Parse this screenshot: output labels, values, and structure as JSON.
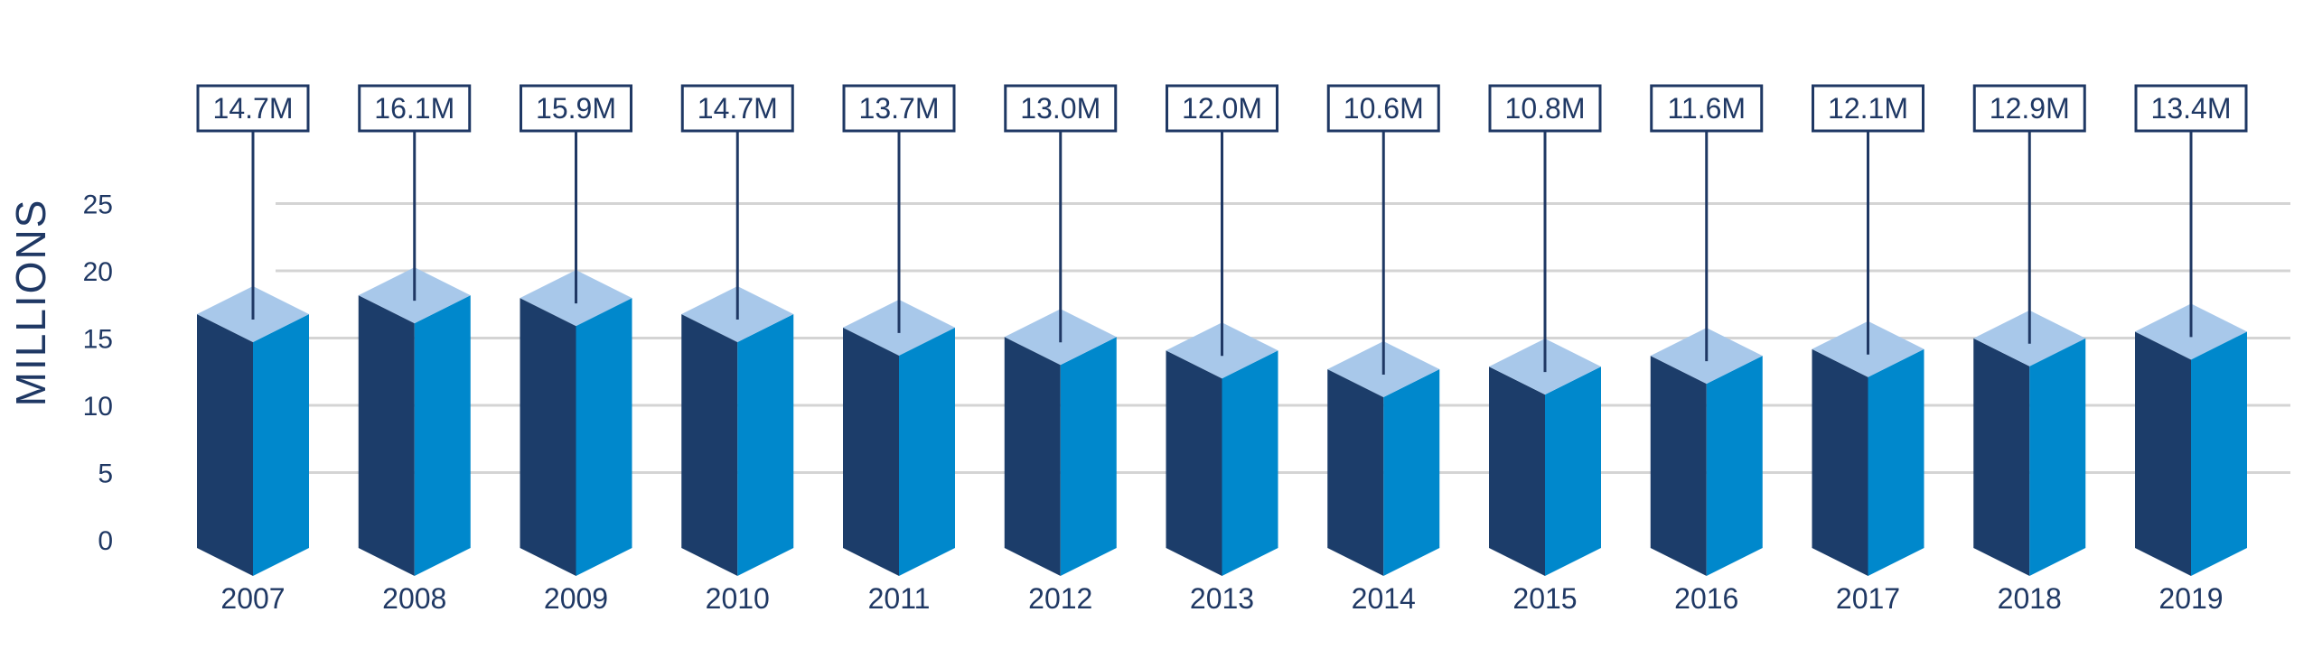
{
  "colors": {
    "front_left": "#1c3d6a",
    "front_right": "#0088cc",
    "top": "#a8c8ea",
    "grid": "#d4d4d4",
    "text": "#1f3864"
  },
  "chart_data": {
    "type": "bar",
    "ylabel": "MILLIONS",
    "xlabel": "",
    "ylim": [
      0,
      25
    ],
    "yticks": [
      0,
      5,
      10,
      15,
      20,
      25
    ],
    "grid": true,
    "categories": [
      "2007",
      "2008",
      "2009",
      "2010",
      "2011",
      "2012",
      "2013",
      "2014",
      "2015",
      "2016",
      "2017",
      "2018",
      "2019"
    ],
    "values": [
      14.7,
      16.1,
      15.9,
      14.7,
      13.7,
      13.0,
      12.0,
      10.6,
      10.8,
      11.6,
      12.1,
      12.9,
      13.4
    ],
    "labels": [
      "14.7M",
      "16.1M",
      "15.9M",
      "14.7M",
      "13.7M",
      "13.0M",
      "12.0M",
      "10.6M",
      "10.8M",
      "11.6M",
      "12.1M",
      "12.9M",
      "13.4M"
    ]
  }
}
